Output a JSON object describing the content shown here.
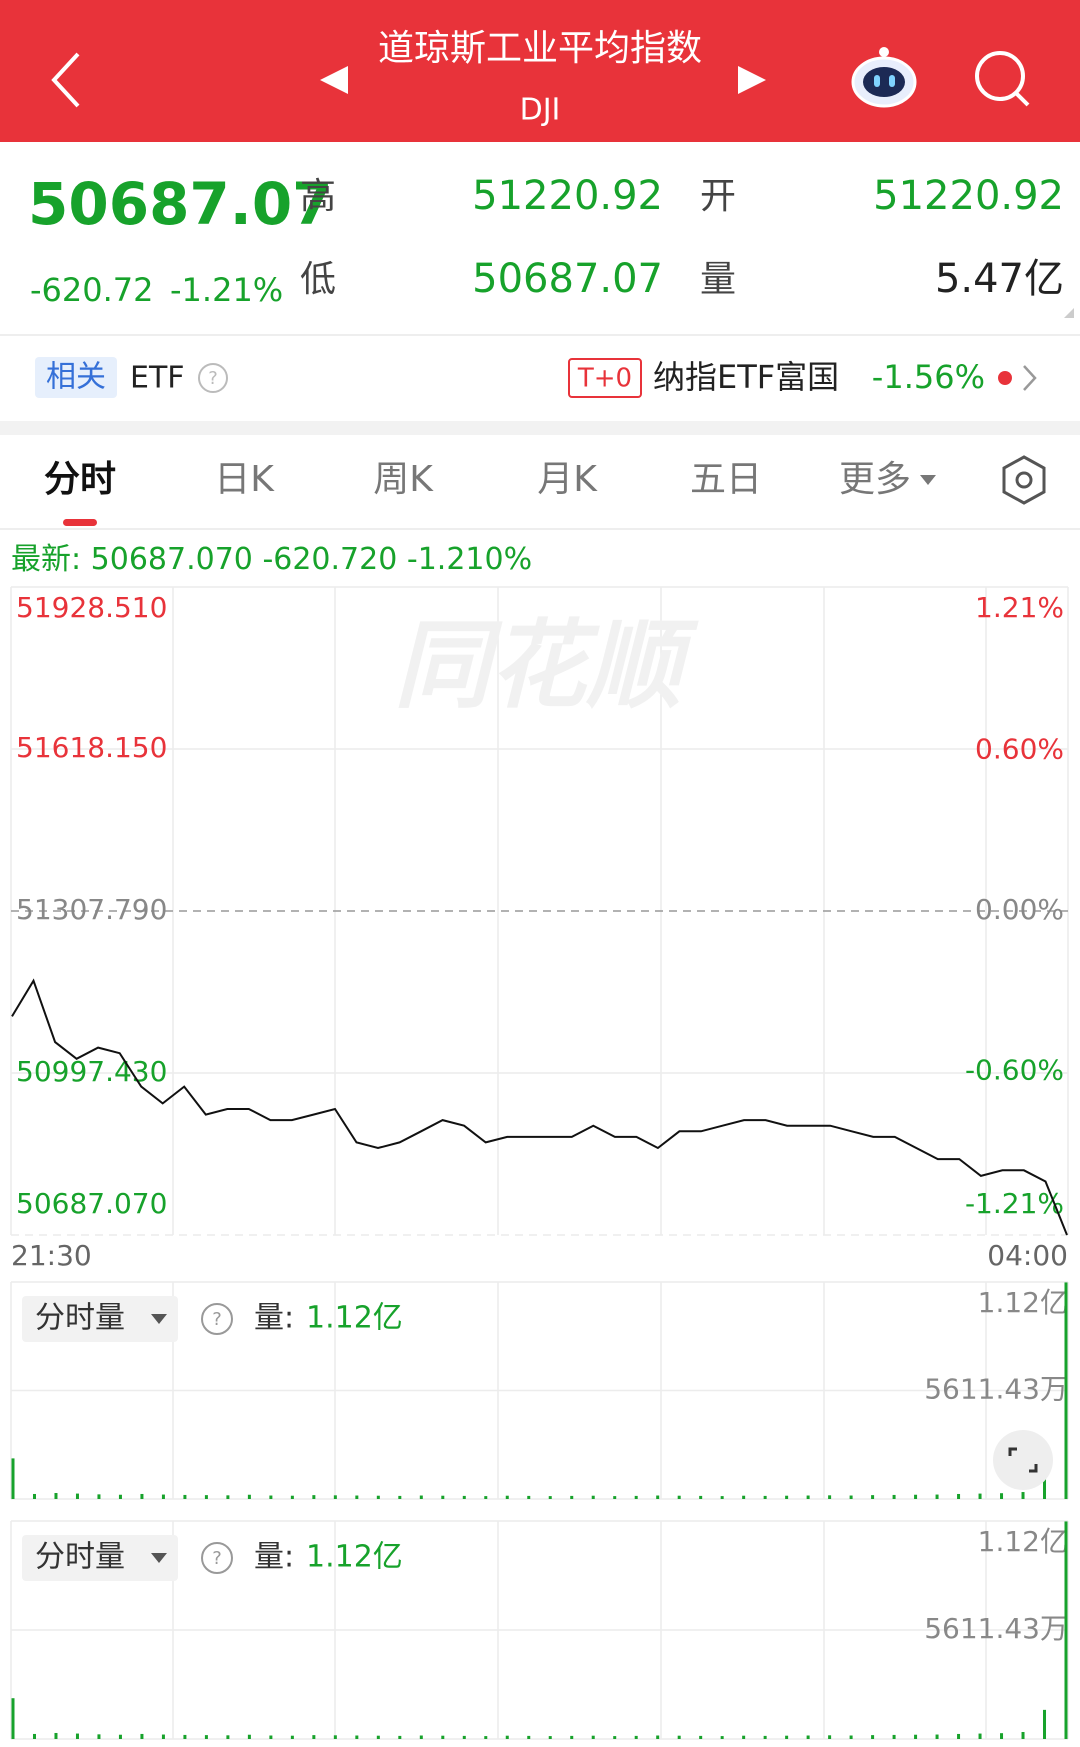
{
  "header": {
    "title": "道琼斯工业平均指数",
    "code": "DJI"
  },
  "quote": {
    "price": "50687.07",
    "change": "-620.72",
    "change_pct": "-1.21%",
    "high_label": "高",
    "high": "51220.92",
    "open_label": "开",
    "open": "51220.92",
    "low_label": "低",
    "low": "50687.07",
    "volume_label": "量",
    "volume": "5.47亿"
  },
  "etf": {
    "tag": "相关",
    "label": "ETF",
    "badge": "T+0",
    "name": "纳指ETF富国",
    "change": "-1.56%"
  },
  "tabs": [
    "分时",
    "日K",
    "周K",
    "月K",
    "五日",
    "更多"
  ],
  "latest": {
    "label": "最新:",
    "price": "50687.070",
    "change": "-620.720",
    "pct": "-1.210%"
  },
  "chart_data": [
    {
      "type": "line",
      "watermark": "同花顺",
      "color": "#111111",
      "up_color": "#e8333a",
      "down_color": "#17a22b",
      "flat_color": "#888888",
      "values": [
        51105.9,
        51174.2,
        51056.7,
        51024.7,
        51046.0,
        51035.4,
        50971.3,
        50939.2,
        50971.3,
        50917.8,
        50928.5,
        50928.5,
        50907.2,
        50907.2,
        50917.8,
        50928.5,
        50864.4,
        50853.7,
        50864.4,
        50885.8,
        50907.2,
        50896.5,
        50864.4,
        50875.1,
        50875.1,
        50875.1,
        50875.1,
        50896.5,
        50875.1,
        50875.1,
        50853.7,
        50885.8,
        50885.8,
        50896.5,
        50907.2,
        50907.2,
        50896.5,
        50896.5,
        50896.5,
        50885.8,
        50875.1,
        50875.1,
        50853.7,
        50832.4,
        50832.4,
        50800.3,
        50811.0,
        50811.0,
        50789.6,
        50687.07
      ],
      "ylim": [
        50687.07,
        51928.51
      ],
      "yticks": [
        {
          "value": 51928.51,
          "label": "51928.510"
        },
        {
          "value": 51618.15,
          "label": "51618.150"
        },
        {
          "value": 51307.79,
          "label": "51307.790"
        },
        {
          "value": 50997.43,
          "label": "50997.430"
        },
        {
          "value": 50687.07,
          "label": "50687.070"
        }
      ],
      "y2lim": [
        -1.21,
        1.21
      ],
      "y2ticks": [
        {
          "value": 1.21,
          "label": "1.21%"
        },
        {
          "value": 0.6,
          "label": "0.60%"
        },
        {
          "value": 0,
          "label": "0.00%"
        },
        {
          "value": -0.6,
          "label": "-0.60%"
        },
        {
          "value": -1.21,
          "label": "-1.21%"
        }
      ],
      "xlabels": [
        "21:30",
        "04:00"
      ]
    },
    {
      "type": "bar",
      "label": "分时量",
      "help": "?",
      "volume_label": "量:",
      "volume_value": "1.12亿",
      "color": "#17a22b",
      "values": [
        2100,
        260,
        310,
        280,
        240,
        220,
        260,
        230,
        210,
        200,
        190,
        220,
        180,
        170,
        200,
        190,
        180,
        170,
        160,
        180,
        170,
        160,
        150,
        170,
        160,
        150,
        160,
        170,
        150,
        160,
        180,
        170,
        160,
        150,
        170,
        160,
        170,
        180,
        190,
        180,
        200,
        210,
        220,
        230,
        260,
        280,
        300,
        360,
        1500,
        11200
      ],
      "ylim": [
        0,
        11222.86
      ],
      "yticks": [
        {
          "value": 11222.86,
          "label": "1.12亿"
        },
        {
          "value": 5611.43,
          "label": "5611.43万"
        }
      ]
    }
  ]
}
